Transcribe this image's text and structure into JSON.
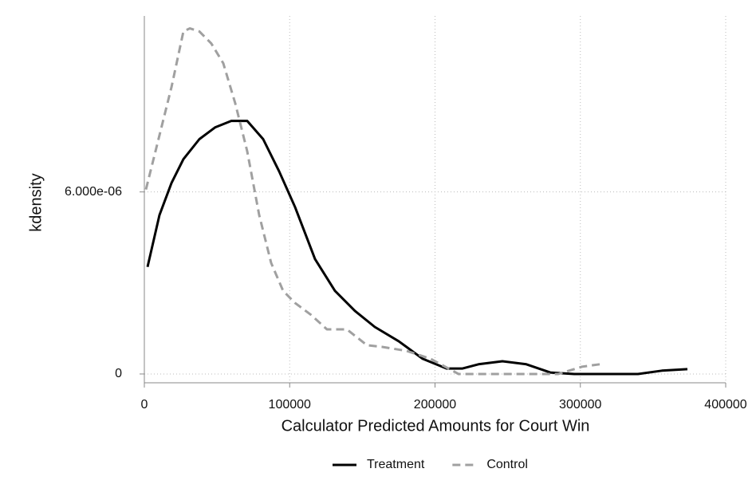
{
  "chart_data": {
    "type": "line",
    "x_label": "Calculator Predicted Amounts for Court Win",
    "y_label": "kdensity",
    "xlim": [
      0,
      400000
    ],
    "ylim": [
      -2.9e-07,
      1.18e-05
    ],
    "xticks": [
      0,
      100000,
      200000,
      300000,
      400000
    ],
    "yticks": [
      0,
      {
        "value": 6e-06,
        "label": "6.000e-06"
      }
    ],
    "grid": true,
    "legend": "bottom",
    "series": [
      {
        "name": "Treatment",
        "color": "#000000",
        "linestyle": "solid",
        "x": [
          2195,
          10425,
          18656,
          26886,
          37860,
          48834,
          59808,
          70782,
          81756,
          92730,
          103704,
          117421,
          131139,
          144856,
          158573,
          175034,
          191495,
          207956,
          218930,
          229904,
          246365,
          262826,
          279287,
          295748,
          339643,
          356104,
          373663
        ],
        "values": [
          3.53e-06,
          5.24e-06,
          6.29e-06,
          7.08e-06,
          7.74e-06,
          8.13e-06,
          8.34e-06,
          8.34e-06,
          7.74e-06,
          6.68e-06,
          5.5e-06,
          3.79e-06,
          2.74e-06,
          2.08e-06,
          1.55e-06,
          1.08e-06,
          5e-07,
          1.8e-07,
          1.8e-07,
          3.2e-07,
          4.2e-07,
          3.2e-07,
          5e-08,
          0,
          0,
          1.1e-07,
          1.6e-07
        ]
      },
      {
        "name": "Control",
        "color": "#a0a0a0",
        "linestyle": "dashed",
        "x": [
          1097,
          10425,
          18656,
          26886,
          31276,
          37860,
          46091,
          54321,
          62551,
          70782,
          79012,
          87243,
          95473,
          103704,
          114678,
          125652,
          139369,
          153086,
          164060,
          180521,
          196982,
          216187,
          284774,
          301235,
          313306
        ],
        "values": [
          6.08e-06,
          7.87e-06,
          9.45e-06,
          1.129e-05,
          1.139e-05,
          1.129e-05,
          1.089e-05,
          1.024e-05,
          8.92e-06,
          7.34e-06,
          5.24e-06,
          3.66e-06,
          2.74e-06,
          2.34e-06,
          1.95e-06,
          1.47e-06,
          1.47e-06,
          9.5e-07,
          8.9e-07,
          7.6e-07,
          5e-07,
          0,
          0,
          2.4e-07,
          3.2e-07
        ]
      }
    ]
  }
}
